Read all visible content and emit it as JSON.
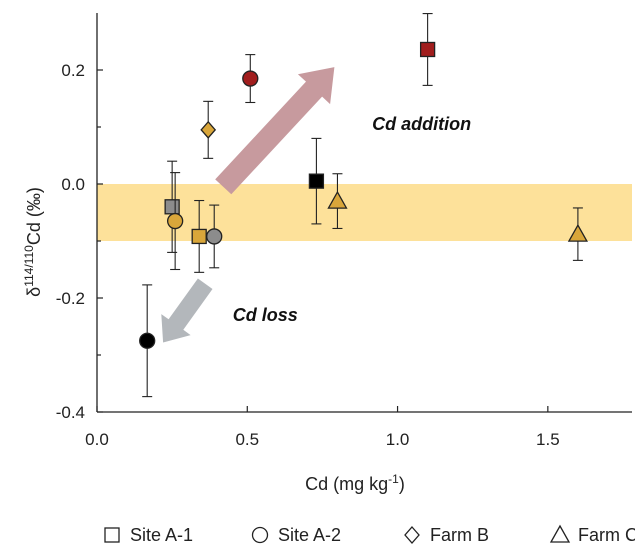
{
  "chart_data": {
    "type": "scatter",
    "xlabel": "Cd (mg kg-1)",
    "ylabel": "δ114/110Cd (‰)",
    "xlim": [
      0,
      1.78
    ],
    "ylim": [
      -0.4,
      0.3
    ],
    "xticks": [
      0.0,
      0.5,
      1.0,
      1.5
    ],
    "xtick_labels": [
      "0.0",
      "0.5",
      "1.0",
      "1.5"
    ],
    "yticks": [
      -0.4,
      -0.2,
      0.0,
      0.2
    ],
    "ytick_labels": [
      "-0.4",
      "-0.2",
      "0.0",
      "0.2"
    ],
    "grid": false,
    "legend_position": "bottom",
    "band": {
      "y0": -0.1,
      "y1": 0.0,
      "color": "#fde19a"
    },
    "annotations": [
      {
        "text": "Cd addition",
        "x": 1.08,
        "y": 0.095
      },
      {
        "text": "Cd loss",
        "x": 0.56,
        "y": -0.24
      }
    ],
    "arrows": [
      {
        "name": "cd-addition-arrow",
        "from": [
          0.42,
          -0.005
        ],
        "to": [
          0.79,
          0.205
        ],
        "color": "#c79a9e"
      },
      {
        "name": "cd-loss-arrow",
        "from": [
          0.36,
          -0.175
        ],
        "to": [
          0.22,
          -0.278
        ],
        "color": "#b3b7bb"
      }
    ],
    "series": [
      {
        "name": "Site A-1",
        "marker": "square",
        "points": [
          {
            "x": 0.25,
            "y": -0.04,
            "err": 0.08,
            "color": "#8c8c8c"
          },
          {
            "x": 0.34,
            "y": -0.092,
            "err": 0.063,
            "color": "#d9a63a"
          },
          {
            "x": 0.73,
            "y": 0.005,
            "err": 0.075,
            "color": "#000000"
          },
          {
            "x": 1.1,
            "y": 0.236,
            "err": 0.063,
            "color": "#a11d1d"
          }
        ]
      },
      {
        "name": "Site A-2",
        "marker": "circle",
        "points": [
          {
            "x": 0.167,
            "y": -0.275,
            "err": 0.098,
            "color": "#000000"
          },
          {
            "x": 0.26,
            "y": -0.065,
            "err": 0.085,
            "color": "#d9a63a"
          },
          {
            "x": 0.39,
            "y": -0.092,
            "err": 0.055,
            "color": "#8c8c8c"
          },
          {
            "x": 0.51,
            "y": 0.185,
            "err": 0.042,
            "color": "#a11d1d"
          }
        ]
      },
      {
        "name": "Farm B",
        "marker": "diamond",
        "points": [
          {
            "x": 0.37,
            "y": 0.095,
            "err": 0.05,
            "color": "#d9a63a"
          }
        ]
      },
      {
        "name": "Farm C",
        "marker": "triangle",
        "points": [
          {
            "x": 0.8,
            "y": -0.03,
            "err": 0.048,
            "color": "#d9a63a"
          },
          {
            "x": 1.6,
            "y": -0.088,
            "err": 0.046,
            "color": "#d9a63a"
          }
        ]
      }
    ],
    "legend": [
      "Site A-1",
      "Site A-2",
      "Farm B",
      "Farm C"
    ]
  },
  "axis_labels": {
    "x_main": "Cd (mg kg",
    "x_sup": "-1",
    "x_end": ")",
    "y_delta": "δ",
    "y_sup": "114/110",
    "y_main": "Cd (‰)"
  }
}
